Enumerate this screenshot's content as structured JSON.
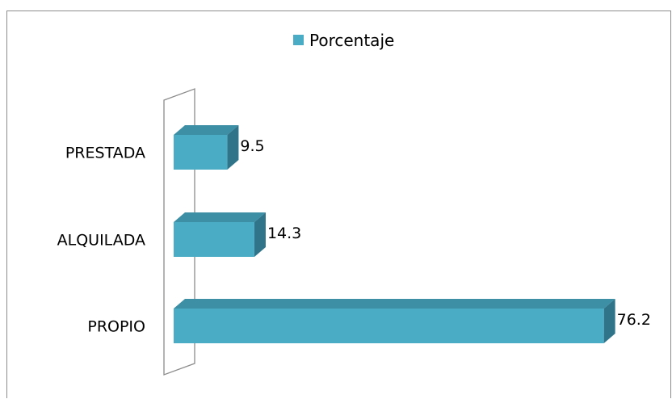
{
  "chart_data": {
    "type": "bar",
    "orientation": "horizontal",
    "style": "3d",
    "categories": [
      "PRESTADA",
      "ALQUILADA",
      "PROPIO"
    ],
    "series": [
      {
        "name": "Porcentaje",
        "values": [
          9.5,
          14.3,
          76.2
        ]
      }
    ],
    "data_labels": [
      "9.5",
      "14.3",
      "76.2"
    ],
    "legend": {
      "position": "top",
      "entries": [
        "Porcentaje"
      ]
    },
    "xlim": [
      0,
      76.2
    ],
    "grid": false,
    "colors": {
      "bar_front": "#4bacc6",
      "bar_top": "#3d8fa6",
      "bar_side": "#2f7489",
      "axis_wall": "#8c8c8c"
    }
  }
}
